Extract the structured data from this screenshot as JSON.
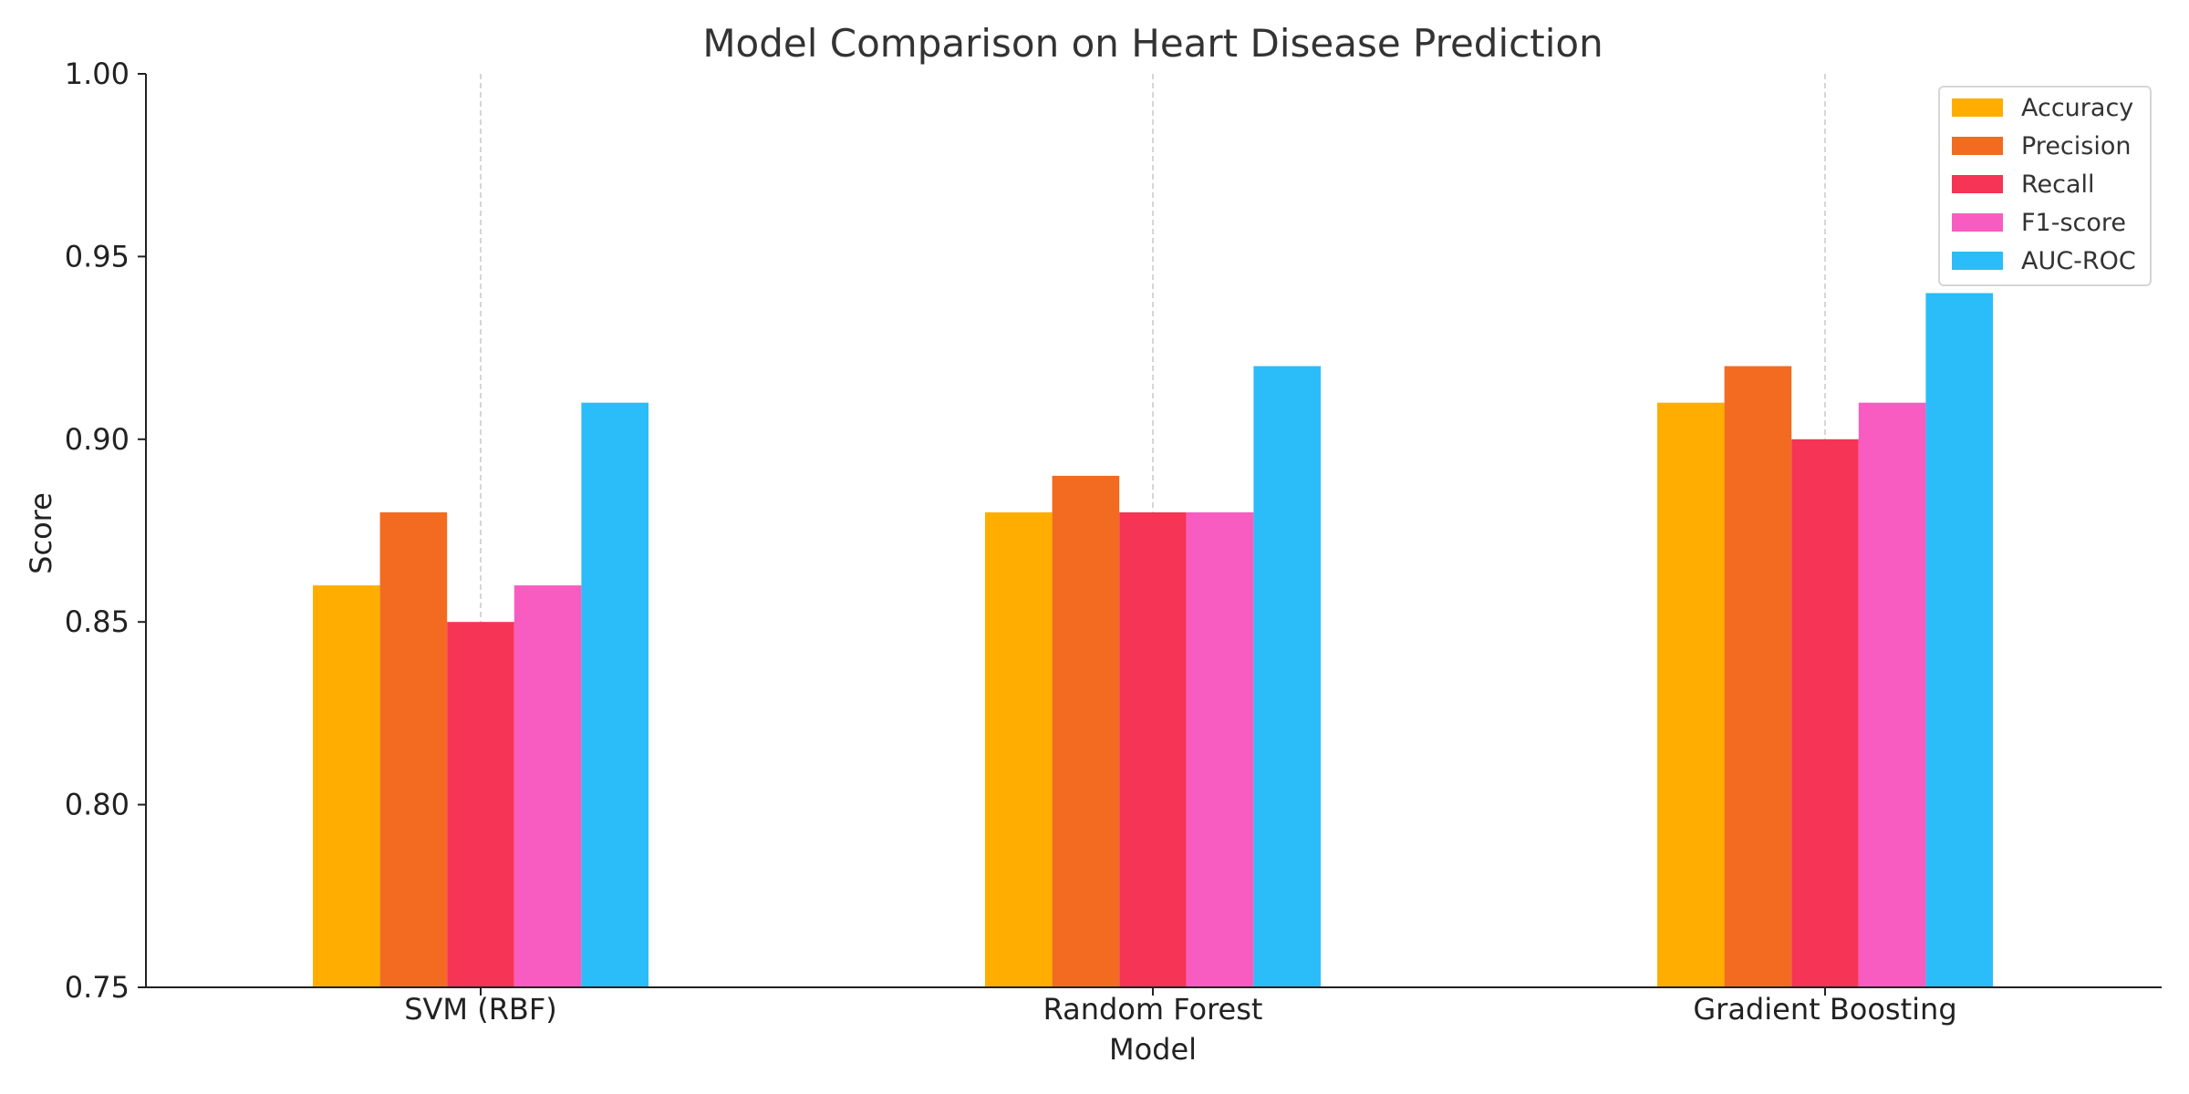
{
  "chart_data": {
    "type": "bar",
    "title": "Model Comparison on Heart Disease Prediction",
    "xlabel": "Model",
    "ylabel": "Score",
    "categories": [
      "SVM (RBF)",
      "Random Forest",
      "Gradient Boosting"
    ],
    "series": [
      {
        "name": "Accuracy",
        "color": "#FFAE00",
        "values": [
          0.86,
          0.88,
          0.91
        ]
      },
      {
        "name": "Precision",
        "color": "#F26B21",
        "values": [
          0.88,
          0.89,
          0.92
        ]
      },
      {
        "name": "Recall",
        "color": "#F63456",
        "values": [
          0.85,
          0.88,
          0.9
        ]
      },
      {
        "name": "F1-score",
        "color": "#F95CC0",
        "values": [
          0.86,
          0.88,
          0.91
        ]
      },
      {
        "name": "AUC-ROC",
        "color": "#2BBCFA",
        "values": [
          0.91,
          0.92,
          0.94
        ]
      }
    ],
    "ylim": [
      0.75,
      1.0
    ],
    "yticks": [
      "0.75",
      "0.80",
      "0.85",
      "0.90",
      "0.95",
      "1.00"
    ],
    "grid": "vertical dashed at categories",
    "legend": "top-right"
  }
}
